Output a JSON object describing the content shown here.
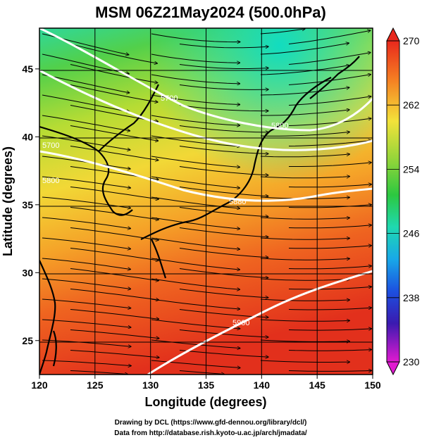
{
  "title": "MSM 06Z21May2024 (500.0hPa)",
  "xlabel": "Longitude (degrees)",
  "ylabel": "Latitude  (degrees)",
  "x_ticks": [
    "120",
    "125",
    "130",
    "135",
    "140",
    "145",
    "150"
  ],
  "y_ticks": [
    "25",
    "30",
    "35",
    "40",
    "45"
  ],
  "colorbar": {
    "ticks": [
      "270",
      "262",
      "254",
      "246",
      "238",
      "230"
    ],
    "min": 230,
    "max": 270
  },
  "contour_labels": [
    "5700",
    "5800",
    "5880",
    "5700",
    "5800",
    "5900"
  ],
  "credits": {
    "line1": "Drawing by DCL (https://www.gfd-dennou.org/library/dcl/)",
    "line2": "Data from http://database.rish.kyoto-u.ac.jp/arch/jmadata/"
  },
  "colors": {
    "hot": "#e0321c",
    "orange": "#f08a1e",
    "yellow": "#f5d838",
    "green": "#3fc83a",
    "teal": "#1fd8a0"
  },
  "chart_data": {
    "type": "heatmap",
    "description_of_axes": "longitude vs latitude",
    "xlim": [
      120,
      150
    ],
    "ylim": [
      22.5,
      48
    ],
    "colorbar_range": [
      230,
      270
    ]
  }
}
